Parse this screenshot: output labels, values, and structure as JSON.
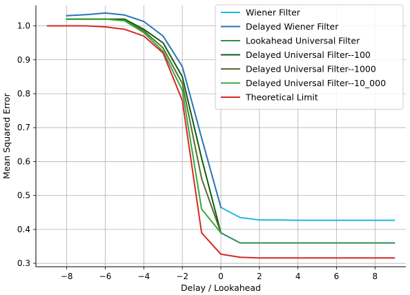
{
  "chart_data": {
    "type": "line",
    "xlabel": "Delay / Lookahead",
    "ylabel": "Mean Squared Error",
    "xlim": [
      -9.6,
      9.6
    ],
    "ylim": [
      0.29,
      1.06
    ],
    "xticks": [
      -8,
      -6,
      -4,
      -2,
      0,
      2,
      4,
      6,
      8
    ],
    "yticks": [
      0.3,
      0.4,
      0.5,
      0.6,
      0.7,
      0.8,
      0.9,
      1.0
    ],
    "xtick_labels": [
      "−8",
      "−6",
      "−4",
      "−2",
      "0",
      "2",
      "4",
      "6",
      "8"
    ],
    "ytick_labels": [
      "0.3",
      "0.4",
      "0.5",
      "0.6",
      "0.7",
      "0.8",
      "0.9",
      "1.0"
    ],
    "grid": true,
    "legend_position": "top-right",
    "series": [
      {
        "name": "Wiener Filter",
        "color": "#1fb8e8",
        "x": [
          0,
          1,
          2,
          3,
          4,
          5,
          6,
          7,
          8,
          9
        ],
        "y": [
          0.465,
          0.435,
          0.428,
          0.428,
          0.427,
          0.427,
          0.427,
          0.427,
          0.427,
          0.427
        ]
      },
      {
        "name": "Delayed Wiener Filter",
        "color": "#2a72b5",
        "x": [
          -8,
          -7,
          -6,
          -5,
          -4,
          -3,
          -2,
          -1,
          0
        ],
        "y": [
          1.03,
          1.033,
          1.038,
          1.032,
          1.013,
          0.97,
          0.88,
          0.67,
          0.465
        ]
      },
      {
        "name": "Lookahead Universal Filter",
        "color": "#2e8b57",
        "x": [
          0,
          1,
          2,
          3,
          4,
          5,
          6,
          7,
          8,
          9
        ],
        "y": [
          0.39,
          0.36,
          0.36,
          0.36,
          0.36,
          0.36,
          0.36,
          0.36,
          0.36,
          0.36
        ]
      },
      {
        "name": "Delayed Universal Filter--100",
        "color": "#0b5e0b",
        "x": [
          -8,
          -7,
          -6,
          -5,
          -4,
          -3,
          -2,
          -1,
          0
        ],
        "y": [
          1.02,
          1.02,
          1.02,
          1.02,
          0.99,
          0.95,
          0.85,
          0.61,
          0.39
        ]
      },
      {
        "name": "Delayed Universal Filter--1000",
        "color": "#556b2f",
        "x": [
          -8,
          -7,
          -6,
          -5,
          -4,
          -3,
          -2,
          -1,
          0
        ],
        "y": [
          1.02,
          1.02,
          1.02,
          1.015,
          0.985,
          0.935,
          0.83,
          0.55,
          0.39
        ]
      },
      {
        "name": "Delayed Universal Filter--10_000",
        "color": "#3aa53a",
        "x": [
          -8,
          -7,
          -6,
          -5,
          -4,
          -3,
          -2,
          -1,
          0
        ],
        "y": [
          1.02,
          1.02,
          1.02,
          1.015,
          0.98,
          0.925,
          0.81,
          0.46,
          0.39
        ]
      },
      {
        "name": "Theoretical Limit",
        "color": "#d62728",
        "x": [
          -9,
          -8,
          -7,
          -6,
          -5,
          -4,
          -3,
          -2,
          -1,
          0,
          1,
          2,
          3,
          4,
          5,
          6,
          7,
          8,
          9
        ],
        "y": [
          1.0,
          1.0,
          1.0,
          0.997,
          0.99,
          0.97,
          0.92,
          0.78,
          0.39,
          0.327,
          0.318,
          0.316,
          0.316,
          0.316,
          0.316,
          0.316,
          0.316,
          0.316,
          0.316
        ]
      }
    ]
  }
}
